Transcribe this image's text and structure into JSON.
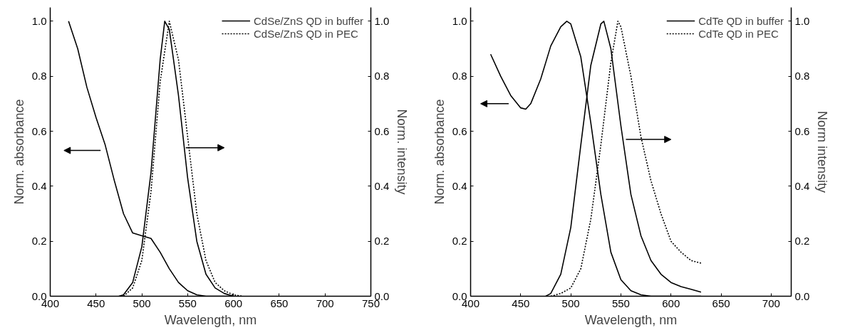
{
  "chart_data": [
    {
      "type": "line",
      "xlabel": "Wavelength, nm",
      "ylabel": "Norm. absorbance",
      "y2label": "Norm. intensity",
      "xlim": [
        400,
        750
      ],
      "xticks": [
        400,
        450,
        500,
        550,
        600,
        650,
        700,
        750
      ],
      "ylim": [
        0,
        1.05
      ],
      "yticks": [
        {
          "value": 0,
          "label": "0.0"
        },
        {
          "value": 0.2,
          "label": "0.2"
        },
        {
          "value": 0.4,
          "label": "0.4"
        },
        {
          "value": 0.6,
          "label": "0.6"
        },
        {
          "value": 0.8,
          "label": "0.8"
        },
        {
          "value": 1,
          "label": "1.0"
        }
      ],
      "y2lim": [
        0,
        1.05
      ],
      "y2ticks": [
        {
          "value": 0,
          "label": "0.0"
        },
        {
          "value": 0.2,
          "label": "0.2"
        },
        {
          "value": 0.4,
          "label": "0.4"
        },
        {
          "value": 0.6,
          "label": "0.6"
        },
        {
          "value": 0.8,
          "label": "0.8"
        },
        {
          "value": 1,
          "label": "1.0"
        }
      ],
      "legend": "top right",
      "grid": false,
      "series": [
        {
          "color": "#000000",
          "line_style": "solid",
          "x": [
            420,
            430,
            440,
            450,
            460,
            470,
            480,
            490,
            500,
            510,
            520,
            530,
            540,
            550,
            560,
            570,
            600
          ],
          "values": [
            1.0,
            0.9,
            0.76,
            0.65,
            0.55,
            0.42,
            0.3,
            0.23,
            0.22,
            0.21,
            0.16,
            0.1,
            0.05,
            0.02,
            0.005,
            0,
            0
          ]
        },
        {
          "name": "CdSe/ZnS QD in buffer",
          "color": "#000000",
          "line_style": "solid",
          "x": [
            475,
            480,
            490,
            500,
            510,
            520,
            525,
            530,
            540,
            550,
            560,
            570,
            580,
            590,
            600
          ],
          "values": [
            0,
            0.005,
            0.05,
            0.18,
            0.45,
            0.86,
            1.0,
            0.97,
            0.73,
            0.43,
            0.2,
            0.08,
            0.03,
            0.01,
            0
          ]
        },
        {
          "name": "CdSe/ZnS QD in PEC",
          "color": "#000000",
          "line_style": "dotted",
          "x": [
            480,
            490,
            500,
            510,
            520,
            530,
            540,
            550,
            560,
            570,
            580,
            590,
            600,
            610
          ],
          "values": [
            0,
            0.03,
            0.13,
            0.38,
            0.78,
            1.0,
            0.86,
            0.58,
            0.3,
            0.13,
            0.05,
            0.02,
            0.005,
            0
          ]
        }
      ]
    },
    {
      "type": "line",
      "xlabel": "Wavelength, nm",
      "ylabel": "Norm. absorbance",
      "y2label": "Norm intensity",
      "xlim": [
        400,
        720
      ],
      "xticks": [
        400,
        450,
        500,
        550,
        600,
        650,
        700
      ],
      "ylim": [
        0,
        1.05
      ],
      "yticks": [
        {
          "value": 0,
          "label": "0.0"
        },
        {
          "value": 0.2,
          "label": "0.2"
        },
        {
          "value": 0.4,
          "label": "0.4"
        },
        {
          "value": 0.6,
          "label": "0.6"
        },
        {
          "value": 0.8,
          "label": "0.8"
        },
        {
          "value": 1,
          "label": "1.0"
        }
      ],
      "y2lim": [
        0,
        1.05
      ],
      "y2ticks": [
        {
          "value": 0,
          "label": "0.0"
        },
        {
          "value": 0.2,
          "label": "0.2"
        },
        {
          "value": 0.4,
          "label": "0.4"
        },
        {
          "value": 0.6,
          "label": "0.6"
        },
        {
          "value": 0.8,
          "label": "0.8"
        },
        {
          "value": 1,
          "label": "1.0"
        }
      ],
      "legend": "top right",
      "grid": false,
      "series": [
        {
          "color": "#000000",
          "line_style": "solid",
          "x": [
            420,
            430,
            440,
            450,
            455,
            460,
            470,
            480,
            490,
            496,
            500,
            510,
            520,
            530,
            540,
            550,
            560,
            570,
            580,
            600,
            630
          ],
          "values": [
            0.88,
            0.8,
            0.73,
            0.685,
            0.68,
            0.7,
            0.79,
            0.91,
            0.98,
            1.0,
            0.99,
            0.87,
            0.63,
            0.37,
            0.16,
            0.06,
            0.02,
            0.005,
            0,
            0,
            0
          ]
        },
        {
          "name": "CdTe QD in buffer",
          "color": "#000000",
          "line_style": "solid",
          "x": [
            475,
            480,
            490,
            500,
            510,
            520,
            530,
            533,
            540,
            550,
            560,
            570,
            580,
            590,
            600,
            610,
            620,
            630
          ],
          "values": [
            0,
            0.01,
            0.08,
            0.25,
            0.55,
            0.84,
            0.99,
            1.0,
            0.9,
            0.62,
            0.37,
            0.22,
            0.13,
            0.08,
            0.05,
            0.035,
            0.025,
            0.015
          ]
        },
        {
          "name": "CdTe QD in PEC",
          "color": "#000000",
          "line_style": "dotted",
          "x": [
            480,
            490,
            500,
            510,
            520,
            530,
            540,
            547,
            550,
            560,
            570,
            580,
            590,
            600,
            610,
            620,
            630
          ],
          "values": [
            0,
            0.01,
            0.03,
            0.1,
            0.28,
            0.55,
            0.85,
            1.0,
            0.98,
            0.8,
            0.58,
            0.42,
            0.3,
            0.2,
            0.16,
            0.13,
            0.12
          ]
        }
      ]
    }
  ]
}
